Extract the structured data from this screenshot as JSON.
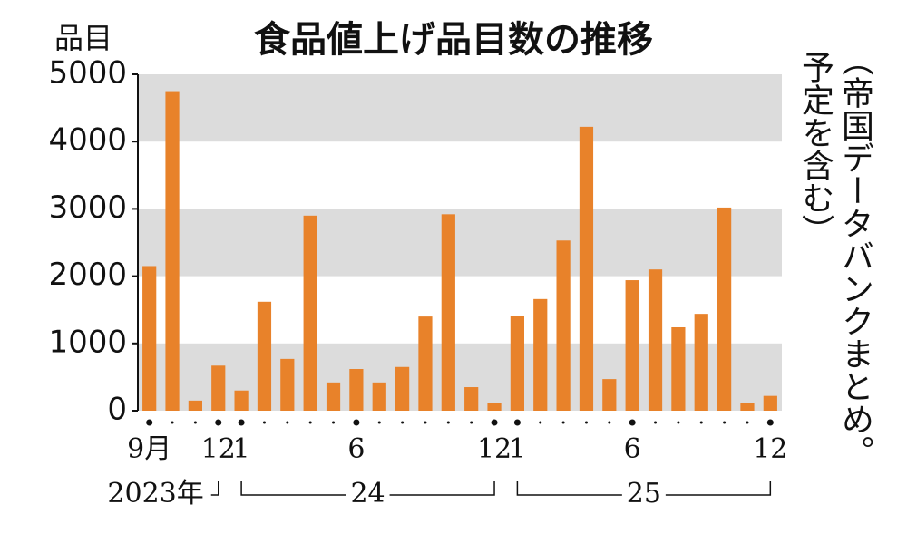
{
  "chart_data": {
    "type": "bar",
    "title": "食品値上げ品目数の推移",
    "y_label": "品目",
    "note": [
      "（帝国データバンクまとめ。",
      "予定を含む）"
    ],
    "categories": [
      "9月",
      null,
      null,
      "12",
      "1",
      null,
      null,
      null,
      null,
      "6",
      null,
      null,
      null,
      null,
      null,
      "12",
      "1",
      null,
      null,
      null,
      null,
      "6",
      null,
      null,
      null,
      null,
      null,
      "12"
    ],
    "years": [
      "2023年",
      "24",
      "25"
    ],
    "values": [
      2150,
      4750,
      150,
      670,
      300,
      1620,
      770,
      2900,
      420,
      620,
      420,
      650,
      1400,
      2920,
      350,
      120,
      1410,
      1660,
      2530,
      4220,
      470,
      1940,
      2100,
      1240,
      1440,
      3020,
      110,
      220
    ],
    "color": "#e8822a",
    "band_color": "#dcdcdc",
    "ylim": [
      0,
      5000
    ],
    "yticks": [
      0,
      1000,
      2000,
      3000,
      4000,
      5000
    ],
    "grid": true
  }
}
